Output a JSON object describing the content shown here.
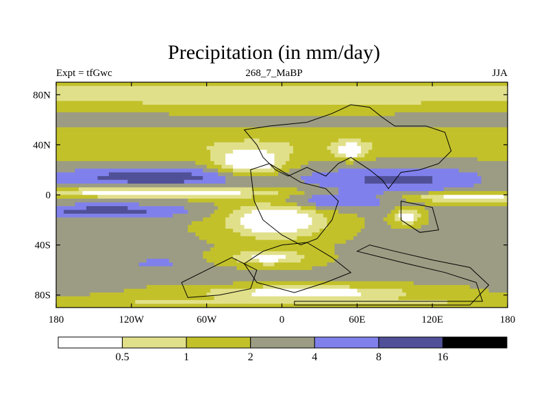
{
  "chart_data": {
    "type": "contour-map",
    "title": "Precipitation (in mm/day)",
    "left_string": "Expt = tfGwc",
    "center_string": "268_7_MaBP",
    "right_string": "JJA",
    "x_ticks": [
      {
        "value": -180,
        "label": "180"
      },
      {
        "value": -120,
        "label": "120W"
      },
      {
        "value": -60,
        "label": "60W"
      },
      {
        "value": 0,
        "label": "0"
      },
      {
        "value": 60,
        "label": "60E"
      },
      {
        "value": 120,
        "label": "120E"
      },
      {
        "value": 180,
        "label": "180"
      }
    ],
    "y_ticks": [
      {
        "value": 80,
        "label": "80N"
      },
      {
        "value": 40,
        "label": "40N"
      },
      {
        "value": 0,
        "label": "0"
      },
      {
        "value": -40,
        "label": "40S"
      },
      {
        "value": -80,
        "label": "80S"
      }
    ],
    "xlim": [
      -180,
      180
    ],
    "ylim": [
      -90,
      90
    ],
    "contour_levels": [
      0.5,
      1,
      2,
      4,
      8,
      16
    ],
    "colorbar": {
      "labels": [
        "0.5",
        "1",
        "2",
        "4",
        "8",
        "16"
      ],
      "colors": [
        "#ffffff",
        "#e1e08a",
        "#c2c12a",
        "#9c9c84",
        "#8080ec",
        "#505098",
        "#000000"
      ]
    },
    "units": "mm/day"
  }
}
